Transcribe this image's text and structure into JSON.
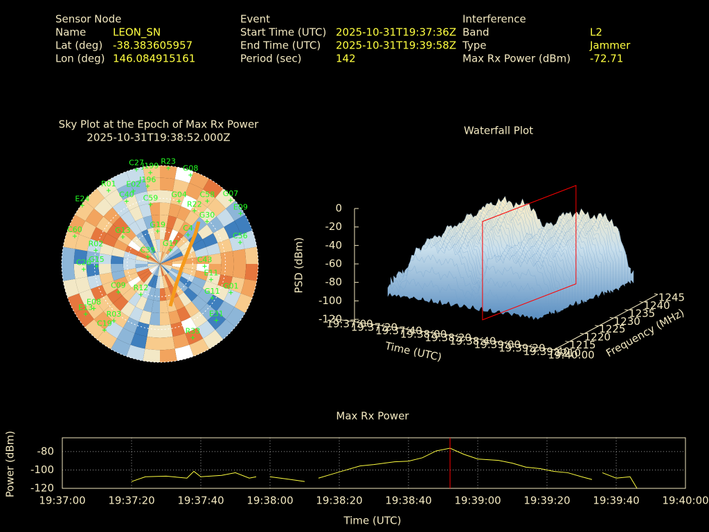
{
  "header": {
    "sections": [
      {
        "title": "Sensor Node",
        "rows": [
          [
            "Name",
            "LEON_SN"
          ],
          [
            "Lat (deg)",
            "-38.383605957"
          ],
          [
            "Lon (deg)",
            "146.084915161"
          ]
        ]
      },
      {
        "title": "Event",
        "rows": [
          [
            "Start Time (UTC)",
            "2025-10-31T19:37:36Z"
          ],
          [
            "End Time (UTC)",
            "2025-10-31T19:39:58Z"
          ],
          [
            "Period (sec)",
            "142"
          ]
        ]
      },
      {
        "title": "Interference",
        "rows": [
          [
            "Band",
            "L2"
          ],
          [
            "Type",
            "Jammer"
          ],
          [
            "Max Rx Power (dBm)",
            "-72.71"
          ]
        ]
      }
    ]
  },
  "chart_data": [
    {
      "type": "sky",
      "title": "Sky Plot at the Epoch of Max Rx Power",
      "subtitle": "2025-10-31T19:38:52.000Z",
      "satellites": [
        {
          "name": "C27",
          "az": 346,
          "el": 1
        },
        {
          "name": "J199",
          "az": 354,
          "el": 6
        },
        {
          "name": "R23",
          "az": 5,
          "el": 2
        },
        {
          "name": "G08",
          "az": 19,
          "el": 4
        },
        {
          "name": "R01",
          "az": 325,
          "el": 8
        },
        {
          "name": "E02",
          "az": 340,
          "el": 19
        },
        {
          "name": "J196",
          "az": 351,
          "el": 18
        },
        {
          "name": "C58",
          "az": 37,
          "el": 18
        },
        {
          "name": "G07",
          "az": 48,
          "el": 3
        },
        {
          "name": "E09",
          "az": 58,
          "el": 3
        },
        {
          "name": "E24",
          "az": 307,
          "el": 1
        },
        {
          "name": "C40",
          "az": 332,
          "el": 25
        },
        {
          "name": "C59",
          "az": 351,
          "el": 35
        },
        {
          "name": "G04",
          "az": 17,
          "el": 30
        },
        {
          "name": "R22",
          "az": 33,
          "el": 32
        },
        {
          "name": "G30",
          "az": 48,
          "el": 32
        },
        {
          "name": "G19",
          "az": 356,
          "el": 60
        },
        {
          "name": "C4",
          "az": 44,
          "el": 53
        },
        {
          "name": "G13",
          "az": 306,
          "el": 48
        },
        {
          "name": "C60",
          "az": 288,
          "el": 8
        },
        {
          "name": "C56",
          "az": 75,
          "el": 14
        },
        {
          "name": "R02",
          "az": 282,
          "el": 30
        },
        {
          "name": "G17",
          "az": 37,
          "el": 74
        },
        {
          "name": "C26",
          "az": 266,
          "el": 20
        },
        {
          "name": "G15",
          "az": 268,
          "el": 32
        },
        {
          "name": "C43",
          "az": 93,
          "el": 49
        },
        {
          "name": "C39",
          "az": 300,
          "el": 77
        },
        {
          "name": "E11",
          "az": 107,
          "el": 41
        },
        {
          "name": "G01",
          "az": 112,
          "el": 20
        },
        {
          "name": "C09",
          "az": 236,
          "el": 44
        },
        {
          "name": "R12",
          "az": 212,
          "el": 57
        },
        {
          "name": "G11",
          "az": 123,
          "el": 33
        },
        {
          "name": "E08",
          "az": 236,
          "el": 17
        },
        {
          "name": "E31",
          "az": 135,
          "el": 17
        },
        {
          "name": "E13",
          "az": 236,
          "el": 8
        },
        {
          "name": "R03",
          "az": 219,
          "el": 23
        },
        {
          "name": "C19",
          "az": 220,
          "el": 11
        },
        {
          "name": "R33",
          "az": 156,
          "el": 16
        }
      ]
    },
    {
      "type": "waterfall",
      "title": "Waterfall Plot",
      "x_label": "Time (UTC)",
      "y_label": "Frequency (MHz)",
      "z_label": "PSD (dBm)",
      "xlim": [
        "19:37:00",
        "19:40:00"
      ],
      "xticks": [
        "19:37:00",
        "19:37:20",
        "19:37:40",
        "19:38:00",
        "19:38:20",
        "19:38:40",
        "19:39:00",
        "19:39:20",
        "19:39:40",
        "19:40:00"
      ],
      "ylim": [
        1210,
        1245
      ],
      "yticks": [
        1210,
        1215,
        1220,
        1225,
        1230,
        1235,
        1240,
        1245
      ],
      "zlim": [
        -120,
        0
      ],
      "zticks": [
        -120,
        -100,
        -80,
        -60,
        -40,
        -20,
        0
      ],
      "marker_x": "19:38:52",
      "marker_color": "#ff0000"
    },
    {
      "type": "line",
      "title": "Max Rx Power",
      "x_label": "Time (UTC)",
      "y_label": "Power (dBm)",
      "x": [
        "19:37:20",
        "19:37:24",
        "19:37:30",
        "19:37:36",
        "19:37:38",
        "19:37:40",
        "19:37:46",
        "19:37:50",
        "19:37:54",
        "19:37:56",
        "19:37:58",
        "19:38:00",
        "19:38:06",
        "19:38:10",
        "19:38:12",
        "19:38:14",
        "19:38:18",
        "19:38:22",
        "19:38:26",
        "19:38:30",
        "19:38:36",
        "19:38:40",
        "19:38:44",
        "19:38:48",
        "19:38:52",
        "19:38:56",
        "19:39:00",
        "19:39:06",
        "19:39:10",
        "19:39:14",
        "19:39:18",
        "19:39:22",
        "19:39:26",
        "19:39:30",
        "19:39:33",
        "19:39:34",
        "19:39:36",
        "19:39:40",
        "19:39:44",
        "19:39:46"
      ],
      "series": [
        {
          "color": "#ffff40",
          "values": [
            -112.6,
            -107.4,
            -106.7,
            -108.9,
            -101.5,
            -107.4,
            -105.9,
            -103.0,
            -108.9,
            -107.4,
            null,
            -107.4,
            -110.4,
            -112.6,
            null,
            -108.9,
            -104.4,
            -100.0,
            -95.6,
            -94.1,
            -91.1,
            -90.4,
            -86.7,
            -79.3,
            -76.3,
            -83.0,
            -88.1,
            -89.6,
            -92.6,
            -97.0,
            -98.5,
            -101.5,
            -103.0,
            -107.4,
            -110.4,
            null,
            -103.0,
            -108.9,
            -107.4,
            -120.0
          ]
        }
      ],
      "xlim": [
        "19:37:00",
        "19:40:00"
      ],
      "xticks": [
        "19:37:00",
        "19:37:20",
        "19:37:40",
        "19:38:00",
        "19:38:20",
        "19:38:40",
        "19:39:00",
        "19:39:20",
        "19:39:40",
        "19:40:00"
      ],
      "ylim": [
        -120,
        -65
      ],
      "yticks": [
        -120,
        -100,
        -80
      ],
      "grid": true,
      "marker_x": "19:38:52",
      "marker_color": "#ff0000"
    }
  ]
}
